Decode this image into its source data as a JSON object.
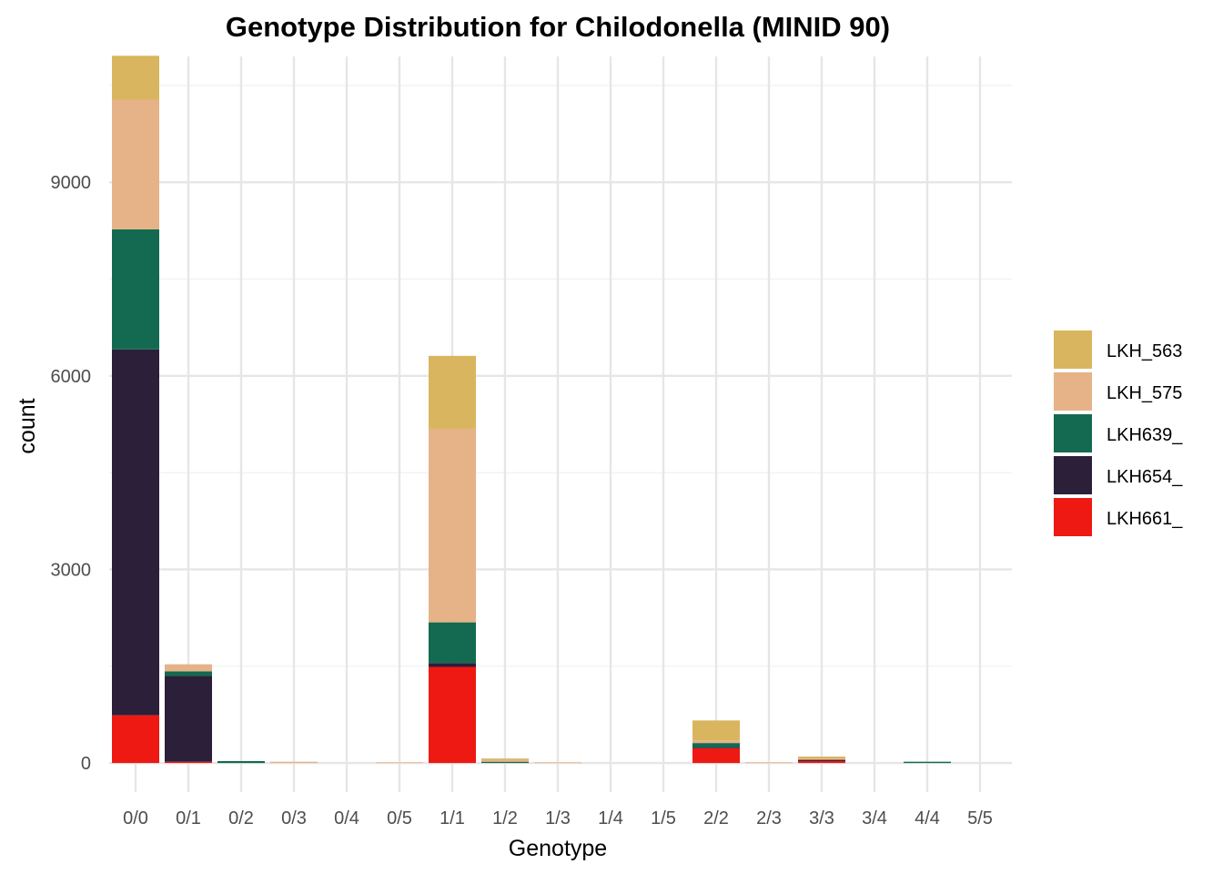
{
  "chart_data": {
    "type": "bar",
    "stacked": true,
    "title": "Genotype Distribution for Chilodonella (MINID 90)",
    "xlabel": "Genotype",
    "ylabel": "count",
    "ylim": [
      -450,
      10950
    ],
    "yticks": [
      0,
      3000,
      6000,
      9000
    ],
    "ytick_labels": [
      "0",
      "3000",
      "6000",
      "9000"
    ],
    "categories": [
      "0/0",
      "0/1",
      "0/2",
      "0/3",
      "0/4",
      "0/5",
      "1/1",
      "1/2",
      "1/3",
      "1/4",
      "1/5",
      "2/2",
      "2/3",
      "3/3",
      "3/4",
      "4/4",
      "5/5"
    ],
    "legend_position": "right",
    "series": [
      {
        "name": "LKH_563",
        "color": "#DAB55F",
        "values": [
          680,
          0,
          0,
          0,
          0,
          0,
          1130,
          20,
          0,
          0,
          0,
          310,
          0,
          30,
          0,
          0,
          0
        ]
      },
      {
        "name": "LKH_575",
        "color": "#E5B387",
        "values": [
          2010,
          110,
          0,
          20,
          0,
          10,
          3000,
          30,
          10,
          0,
          0,
          40,
          10,
          20,
          0,
          0,
          0
        ]
      },
      {
        "name": "LKH639_",
        "color": "#136A50",
        "values": [
          1860,
          70,
          30,
          0,
          0,
          0,
          630,
          20,
          0,
          0,
          0,
          70,
          0,
          0,
          0,
          20,
          0
        ]
      },
      {
        "name": "LKH654_",
        "color": "#2C1F3A",
        "values": [
          5670,
          1330,
          0,
          0,
          0,
          0,
          60,
          0,
          0,
          0,
          0,
          10,
          0,
          20,
          0,
          0,
          0
        ]
      },
      {
        "name": "LKH661_",
        "color": "#EE1912",
        "values": [
          740,
          20,
          0,
          0,
          0,
          0,
          1490,
          0,
          0,
          0,
          0,
          230,
          0,
          30,
          0,
          0,
          0
        ]
      }
    ]
  }
}
